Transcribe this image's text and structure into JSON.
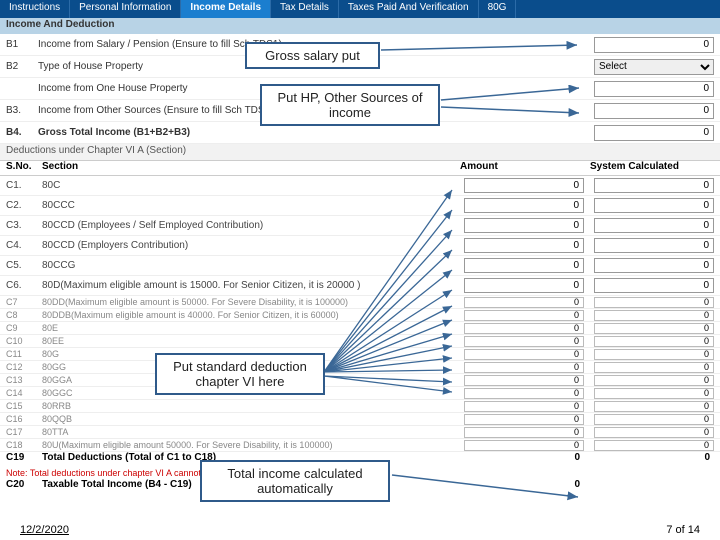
{
  "tabs": [
    {
      "label": "Instructions"
    },
    {
      "label": "Personal Information"
    },
    {
      "label": "Income Details",
      "active": true
    },
    {
      "label": "Tax Details"
    },
    {
      "label": "Taxes Paid And Verification"
    },
    {
      "label": "80G"
    }
  ],
  "section_title": "Income And Deduction",
  "income": [
    {
      "code": "B1",
      "label": "Income from Salary / Pension (Ensure to fill Sch TDS1)",
      "type": "text",
      "value": "0"
    },
    {
      "code": "B2",
      "label": "Type of House Property",
      "type": "select",
      "value": "Select"
    },
    {
      "code": "",
      "label": "Income from One House Property",
      "type": "text",
      "value": "0"
    },
    {
      "code": "B3.",
      "label": "Income from Other Sources (Ensure to fill Sch TDS2)",
      "type": "text",
      "value": "0"
    },
    {
      "code": "B4.",
      "label": "Gross Total Income (B1+B2+B3)",
      "type": "text",
      "value": "0",
      "bold": true
    }
  ],
  "sub_heading": "Deductions under Chapter VI A (Section)",
  "ded_headers": {
    "sno": "S.No.",
    "section": "Section",
    "amount": "Amount",
    "sys": "System Calculated"
  },
  "deductions_top": [
    {
      "sno": "C1.",
      "section": "80C",
      "amt": "0",
      "sys": "0"
    },
    {
      "sno": "C2.",
      "section": "80CCC",
      "amt": "0",
      "sys": "0"
    },
    {
      "sno": "C3.",
      "section": "80CCD (Employees / Self Employed Contribution)",
      "amt": "0",
      "sys": "0"
    },
    {
      "sno": "C4.",
      "section": "80CCD (Employers Contribution)",
      "amt": "0",
      "sys": "0"
    },
    {
      "sno": "C5.",
      "section": "80CCG",
      "amt": "0",
      "sys": "0"
    },
    {
      "sno": "C6.",
      "section": "80D(Maximum eligible amount is 15000. For Senior Citizen, it is 20000 )",
      "amt": "0",
      "sys": "0"
    }
  ],
  "deductions_small": [
    {
      "sno": "C7",
      "section": "80DD(Maximum eligible amount is 50000. For Severe Disability, it is 100000)",
      "amt": "0",
      "sys": "0"
    },
    {
      "sno": "C8",
      "section": "80DDB(Maximum eligible amount is 40000. For Senior Citizen, it is 60000)",
      "amt": "0",
      "sys": "0"
    },
    {
      "sno": "C9",
      "section": "80E",
      "amt": "0",
      "sys": "0"
    },
    {
      "sno": "C10",
      "section": "80EE",
      "amt": "0",
      "sys": "0"
    },
    {
      "sno": "C11",
      "section": "80G",
      "amt": "0",
      "sys": "0"
    },
    {
      "sno": "C12",
      "section": "80GG",
      "amt": "0",
      "sys": "0"
    },
    {
      "sno": "C13",
      "section": "80GGA",
      "amt": "0",
      "sys": "0"
    },
    {
      "sno": "C14",
      "section": "80GGC",
      "amt": "0",
      "sys": "0"
    },
    {
      "sno": "C15",
      "section": "80RRB",
      "amt": "0",
      "sys": "0"
    },
    {
      "sno": "C16",
      "section": "80QQB",
      "amt": "0",
      "sys": "0"
    },
    {
      "sno": "C17",
      "section": "80TTA",
      "amt": "0",
      "sys": "0"
    },
    {
      "sno": "C18",
      "section": "80U(Maximum eligible amount 50000. For Severe Disability, it is 100000)",
      "amt": "0",
      "sys": "0"
    }
  ],
  "total_ded": {
    "code": "C19",
    "label": "Total Deductions (Total of C1 to C18)",
    "amt": "0",
    "sys": "0"
  },
  "note": "Note: Total deductions under chapter VI A cannot exceed GTI.",
  "taxable": {
    "code": "C20",
    "label": "Taxable Total Income (B4 - C19)",
    "val": "0"
  },
  "callouts": {
    "c1": "Gross salary put",
    "c2": "Put HP, Other Sources of income",
    "c3": "Put standard deduction chapter VI here",
    "c4": "Total income calculated automatically"
  },
  "footer": {
    "date": "12/2/2020",
    "page": "7 of 14"
  },
  "colors": {
    "tabbar_bg": "#0a4d8c",
    "tab_active_bg": "#1b7ecf",
    "section_bg": "#b8d3e6",
    "callout_border": "#2f5a8a",
    "arrow": "#3a6796"
  }
}
